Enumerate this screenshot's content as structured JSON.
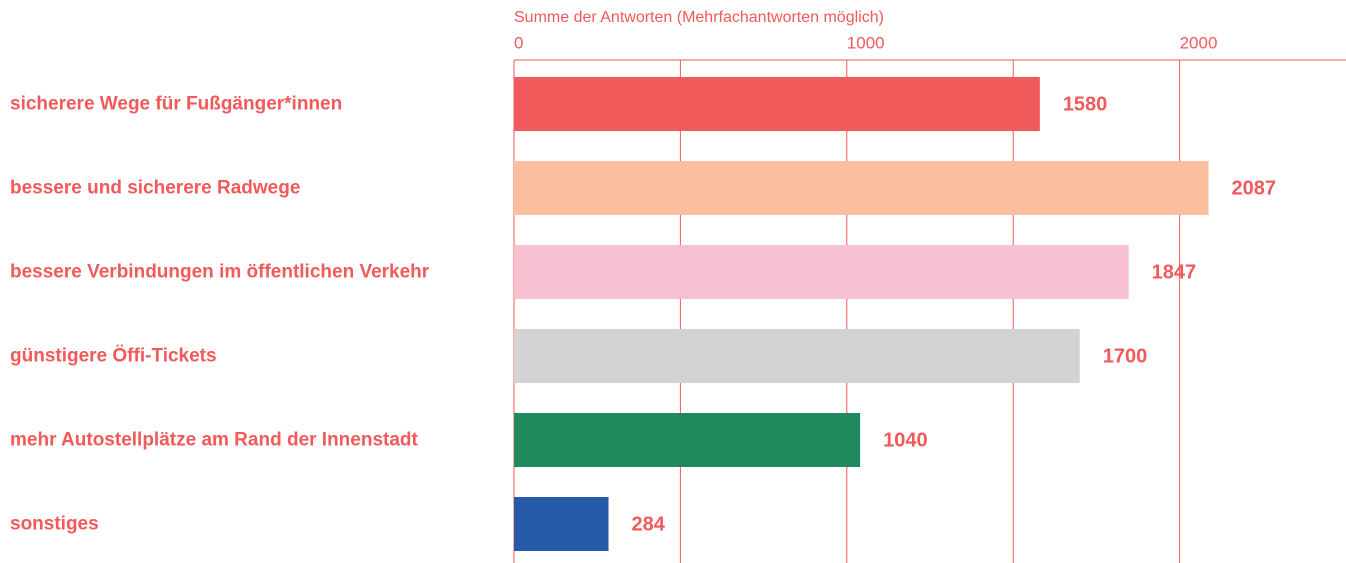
{
  "chart_data": {
    "type": "barh",
    "x_label": "Summe der Antworten (Mehrfachantworten möglich)",
    "categories": [
      "sicherere Wege für Fußgänger*innen",
      "bessere und sicherere Radwege",
      "bessere Verbindungen im öffentlichen Verkehr",
      "günstigere Öffi-Tickets",
      "mehr Autostellplätze am Rand der Innenstadt",
      "sonstiges"
    ],
    "values": [
      1580,
      2087,
      1847,
      1700,
      1040,
      284
    ],
    "colors": [
      "#f05a5a",
      "#f9bf9e",
      "#f7c0d0",
      "#d3d3d3",
      "#1e8a5e",
      "#275aa8"
    ],
    "text_color": "#f05a5a",
    "xlim": [
      0,
      2500
    ],
    "xticks": [
      0,
      1000,
      2000
    ],
    "minor_xticks": [
      500,
      1500
    ],
    "grid": true
  }
}
